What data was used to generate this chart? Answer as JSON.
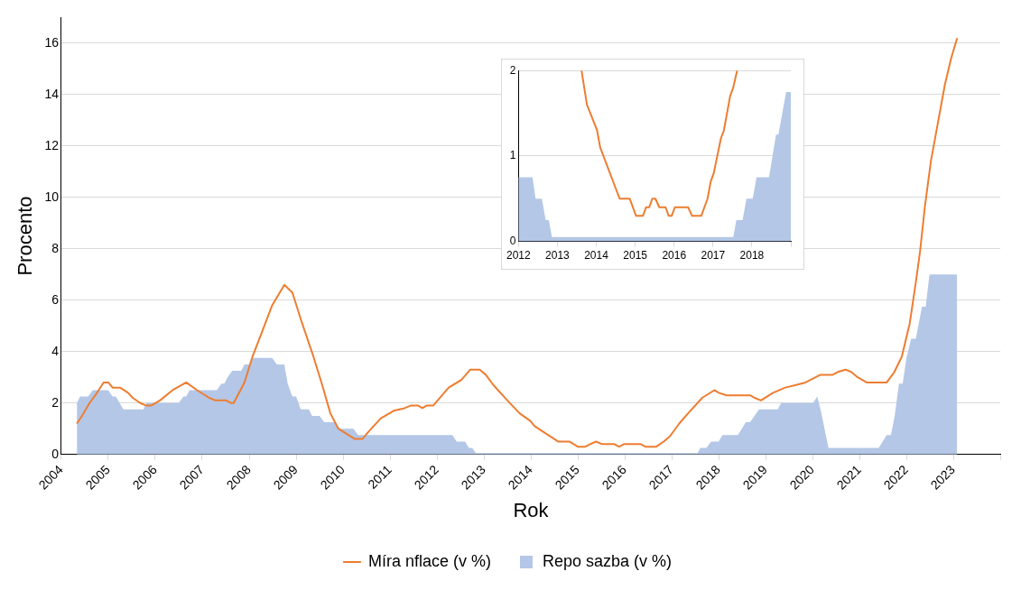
{
  "chart_data": [
    {
      "type": "line",
      "xlabel": "Rok",
      "ylabel": "Procento",
      "xlim": [
        2004,
        2024
      ],
      "xticks": [
        2004,
        2005,
        2006,
        2007,
        2008,
        2009,
        2010,
        2011,
        2012,
        2013,
        2014,
        2015,
        2016,
        2017,
        2018,
        2019,
        2020,
        2021,
        2022,
        2023,
        {
          "value": 2024,
          "label": null
        }
      ],
      "ylim": [
        0,
        17
      ],
      "yticks": [
        0,
        2,
        4,
        6,
        8,
        10,
        12,
        14,
        16
      ],
      "grid": "y",
      "legend": "bottom",
      "series": [
        {
          "name": "Repo sazba (v %)",
          "type": "area",
          "color": "#b4c7e7",
          "x": [
            2004.33,
            2004.4,
            2004.57,
            2004.67,
            2005.0,
            2005.09,
            2005.16,
            2005.32,
            2005.75,
            2005.81,
            2006.5,
            2006.6,
            2006.66,
            2006.73,
            2007.31,
            2007.41,
            2007.47,
            2007.54,
            2007.64,
            2007.83,
            2007.9,
            2008.0,
            2008.07,
            2008.49,
            2008.59,
            2008.75,
            2008.82,
            2008.92,
            2009.0,
            2009.1,
            2009.27,
            2009.34,
            2009.5,
            2009.6,
            2009.83,
            2009.93,
            2010.22,
            2010.32,
            2012.33,
            2012.42,
            2012.6,
            2012.68,
            2012.75,
            2012.83,
            2017.55,
            2017.61,
            2017.74,
            2017.84,
            2018.0,
            2018.08,
            2018.41,
            2018.58,
            2018.67,
            2018.86,
            2019.26,
            2019.33,
            2020.01,
            2020.1,
            2020.17,
            2020.34,
            2021.41,
            2021.58,
            2021.67,
            2021.75,
            2021.84,
            2021.92,
            2022.0,
            2022.1,
            2022.2,
            2022.33,
            2022.41,
            2022.49,
            2023.08
          ],
          "values": [
            2.0,
            2.25,
            2.25,
            2.5,
            2.5,
            2.25,
            2.25,
            1.75,
            1.75,
            2.0,
            2.0,
            2.25,
            2.25,
            2.5,
            2.5,
            2.75,
            2.75,
            3.0,
            3.25,
            3.25,
            3.5,
            3.5,
            3.75,
            3.75,
            3.5,
            3.5,
            2.75,
            2.25,
            2.25,
            1.75,
            1.75,
            1.5,
            1.5,
            1.25,
            1.25,
            1.0,
            1.0,
            0.75,
            0.75,
            0.5,
            0.5,
            0.25,
            0.25,
            0.05,
            0.05,
            0.25,
            0.25,
            0.5,
            0.5,
            0.75,
            0.75,
            1.25,
            1.25,
            1.75,
            1.75,
            2.0,
            2.0,
            2.25,
            1.75,
            0.25,
            0.25,
            0.75,
            0.75,
            1.5,
            2.75,
            2.75,
            3.75,
            4.5,
            4.5,
            5.75,
            5.75,
            7.0,
            7.0
          ]
        },
        {
          "name": "Míra nflace (v %)",
          "type": "line",
          "color": "#ed7d31",
          "x": [
            2004.33,
            2004.44,
            2004.6,
            2004.76,
            2004.9,
            2005.0,
            2005.09,
            2005.25,
            2005.42,
            2005.52,
            2005.68,
            2005.81,
            2005.91,
            2006.1,
            2006.37,
            2006.66,
            2006.89,
            2007.15,
            2007.28,
            2007.51,
            2007.61,
            2007.67,
            2007.9,
            2008.07,
            2008.26,
            2008.49,
            2008.75,
            2008.92,
            2009.11,
            2009.37,
            2009.54,
            2009.73,
            2009.9,
            2010.25,
            2010.41,
            2010.55,
            2010.8,
            2011.08,
            2011.31,
            2011.44,
            2011.6,
            2011.69,
            2011.78,
            2011.92,
            2012.25,
            2012.52,
            2012.71,
            2012.91,
            2013.04,
            2013.2,
            2013.4,
            2013.5,
            2013.76,
            2013.99,
            2014.08,
            2014.58,
            2014.82,
            2015.0,
            2015.16,
            2015.26,
            2015.39,
            2015.52,
            2015.78,
            2015.88,
            2015.98,
            2016.34,
            2016.44,
            2016.67,
            2016.83,
            2016.96,
            2017.16,
            2017.35,
            2017.65,
            2017.91,
            2018.0,
            2018.17,
            2018.67,
            2018.77,
            2018.9,
            2019.16,
            2019.42,
            2019.65,
            2019.85,
            2020.17,
            2020.43,
            2020.53,
            2020.7,
            2020.83,
            2020.96,
            2021.15,
            2021.58,
            2021.74,
            2021.9,
            2022.07,
            2022.2,
            2022.29,
            2022.39,
            2022.52,
            2022.65,
            2022.82,
            2022.95,
            2023.08
          ],
          "values": [
            1.2,
            1.5,
            2.0,
            2.4,
            2.8,
            2.8,
            2.6,
            2.6,
            2.4,
            2.2,
            2.0,
            1.9,
            1.9,
            2.1,
            2.5,
            2.8,
            2.5,
            2.2,
            2.1,
            2.1,
            2.0,
            2.0,
            2.8,
            3.8,
            4.7,
            5.8,
            6.6,
            6.3,
            5.2,
            3.8,
            2.8,
            1.6,
            1.0,
            0.6,
            0.6,
            0.9,
            1.4,
            1.7,
            1.8,
            1.9,
            1.9,
            1.8,
            1.9,
            1.9,
            2.6,
            2.9,
            3.3,
            3.3,
            3.1,
            2.7,
            2.3,
            2.1,
            1.6,
            1.3,
            1.1,
            0.5,
            0.5,
            0.3,
            0.3,
            0.4,
            0.5,
            0.4,
            0.4,
            0.3,
            0.4,
            0.4,
            0.3,
            0.3,
            0.5,
            0.7,
            1.2,
            1.6,
            2.2,
            2.5,
            2.4,
            2.3,
            2.3,
            2.2,
            2.1,
            2.4,
            2.6,
            2.7,
            2.8,
            3.1,
            3.1,
            3.2,
            3.3,
            3.2,
            3.0,
            2.8,
            2.8,
            3.2,
            3.8,
            5.1,
            6.7,
            7.9,
            9.6,
            11.4,
            12.7,
            14.4,
            15.4,
            16.2
          ]
        }
      ]
    },
    {
      "type": "line",
      "xlim": [
        2012,
        2019
      ],
      "xticks": [
        2012,
        2013,
        2014,
        2015,
        2016,
        2017,
        2018,
        {
          "value": 2019,
          "label": null
        }
      ],
      "ylim": [
        0,
        2
      ],
      "yticks": [
        0,
        1,
        2
      ],
      "grid": "y",
      "series": [
        {
          "type": "area",
          "color": "#b4c7e7",
          "x": [
            2012.0,
            2012.36,
            2012.44,
            2012.6,
            2012.7,
            2012.78,
            2012.86,
            2017.52,
            2017.6,
            2017.76,
            2017.86,
            2018.02,
            2018.12,
            2018.44,
            2018.62,
            2018.68,
            2018.88,
            2019.0
          ],
          "values": [
            0.75,
            0.75,
            0.5,
            0.5,
            0.25,
            0.25,
            0.05,
            0.05,
            0.25,
            0.25,
            0.5,
            0.5,
            0.75,
            0.75,
            1.25,
            1.25,
            1.75,
            1.75
          ]
        },
        {
          "type": "line",
          "color": "#ed7d31",
          "x": [
            2013.62,
            2013.76,
            2014.02,
            2014.1,
            2014.6,
            2014.86,
            2015.02,
            2015.2,
            2015.28,
            2015.36,
            2015.44,
            2015.52,
            2015.62,
            2015.78,
            2015.86,
            2015.94,
            2016.02,
            2016.36,
            2016.46,
            2016.7,
            2016.86,
            2016.94,
            2017.02,
            2017.2,
            2017.28,
            2017.44,
            2017.52,
            2017.62
          ],
          "values": [
            2.0,
            1.6,
            1.3,
            1.1,
            0.5,
            0.5,
            0.3,
            0.3,
            0.4,
            0.4,
            0.5,
            0.5,
            0.4,
            0.4,
            0.3,
            0.3,
            0.4,
            0.4,
            0.3,
            0.3,
            0.5,
            0.7,
            0.8,
            1.2,
            1.3,
            1.7,
            1.8,
            2.0
          ]
        }
      ]
    }
  ]
}
